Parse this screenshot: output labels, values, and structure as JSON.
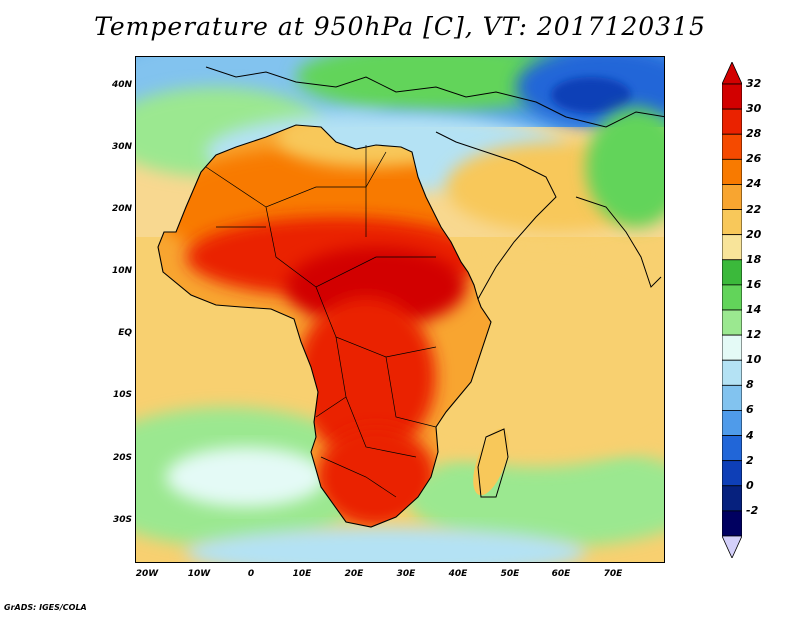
{
  "title": "Temperature at 950hPa [C], VT: 2017120315",
  "footer": "GrADS: IGES/COLA",
  "lat_labels": [
    "40N",
    "30N",
    "20N",
    "10N",
    "EQ",
    "10S",
    "20S",
    "30S"
  ],
  "lon_labels": [
    "20W",
    "10W",
    "0",
    "10E",
    "20E",
    "30E",
    "40E",
    "50E",
    "60E",
    "70E"
  ],
  "colorbar": {
    "labels": [
      "32",
      "30",
      "28",
      "26",
      "24",
      "22",
      "20",
      "18",
      "16",
      "14",
      "12",
      "10",
      "8",
      "6",
      "4",
      "2",
      "0",
      "-2"
    ],
    "colors": [
      "#d20000",
      "#ea2200",
      "#f54a00",
      "#f87a00",
      "#f8a530",
      "#f8c85a",
      "#f8e49a",
      "#3bb93b",
      "#62d45a",
      "#9be890",
      "#e4faf6",
      "#b4e2f4",
      "#82c3ef",
      "#4f9bea",
      "#2166d8",
      "#0e3fb7",
      "#06217e",
      "#000060"
    ],
    "top_arrow_color": "#d20000",
    "bottom_arrow_color": "#d4d0fa"
  },
  "chart_data": {
    "type": "heatmap",
    "title": "Temperature at 950hPa [C], VT: 2017120315",
    "x_ticks": [
      "20W",
      "10W",
      "0",
      "10E",
      "20E",
      "30E",
      "40E",
      "50E",
      "60E",
      "70E"
    ],
    "y_ticks": [
      "40N",
      "30N",
      "20N",
      "10N",
      "EQ",
      "10S",
      "20S",
      "30S"
    ],
    "xlim": [
      -22,
      79
    ],
    "ylim": [
      -37,
      45
    ],
    "color_levels": [
      -2,
      0,
      2,
      4,
      6,
      8,
      10,
      12,
      14,
      16,
      18,
      20,
      22,
      24,
      26,
      28,
      30,
      32
    ]
  }
}
